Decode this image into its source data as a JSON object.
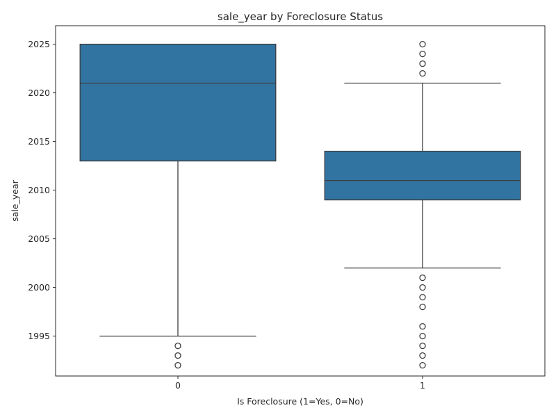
{
  "chart_data": {
    "type": "box",
    "title": "sale_year by Foreclosure Status",
    "xlabel": "Is Foreclosure (1=Yes, 0=No)",
    "ylabel": "sale_year",
    "ylim": [
      1990.9,
      2026.9
    ],
    "yticks": [
      1995,
      2000,
      2005,
      2010,
      2015,
      2020,
      2025
    ],
    "categories": [
      "0",
      "1"
    ],
    "box_color": "#3274a1",
    "line_color": "#3d3d3d",
    "boxes": [
      {
        "category": "0",
        "whisker_low": 1995,
        "q1": 2013,
        "median": 2021,
        "q3": 2025,
        "whisker_high": 2025,
        "outliers": [
          1994,
          1993,
          1992
        ]
      },
      {
        "category": "1",
        "whisker_low": 2002,
        "q1": 2009,
        "median": 2011,
        "q3": 2014,
        "whisker_high": 2021,
        "outliers": [
          2025,
          2024,
          2023,
          2022,
          2001,
          2000,
          1999,
          1998,
          1996,
          1995,
          1994,
          1993,
          1992
        ]
      }
    ]
  }
}
